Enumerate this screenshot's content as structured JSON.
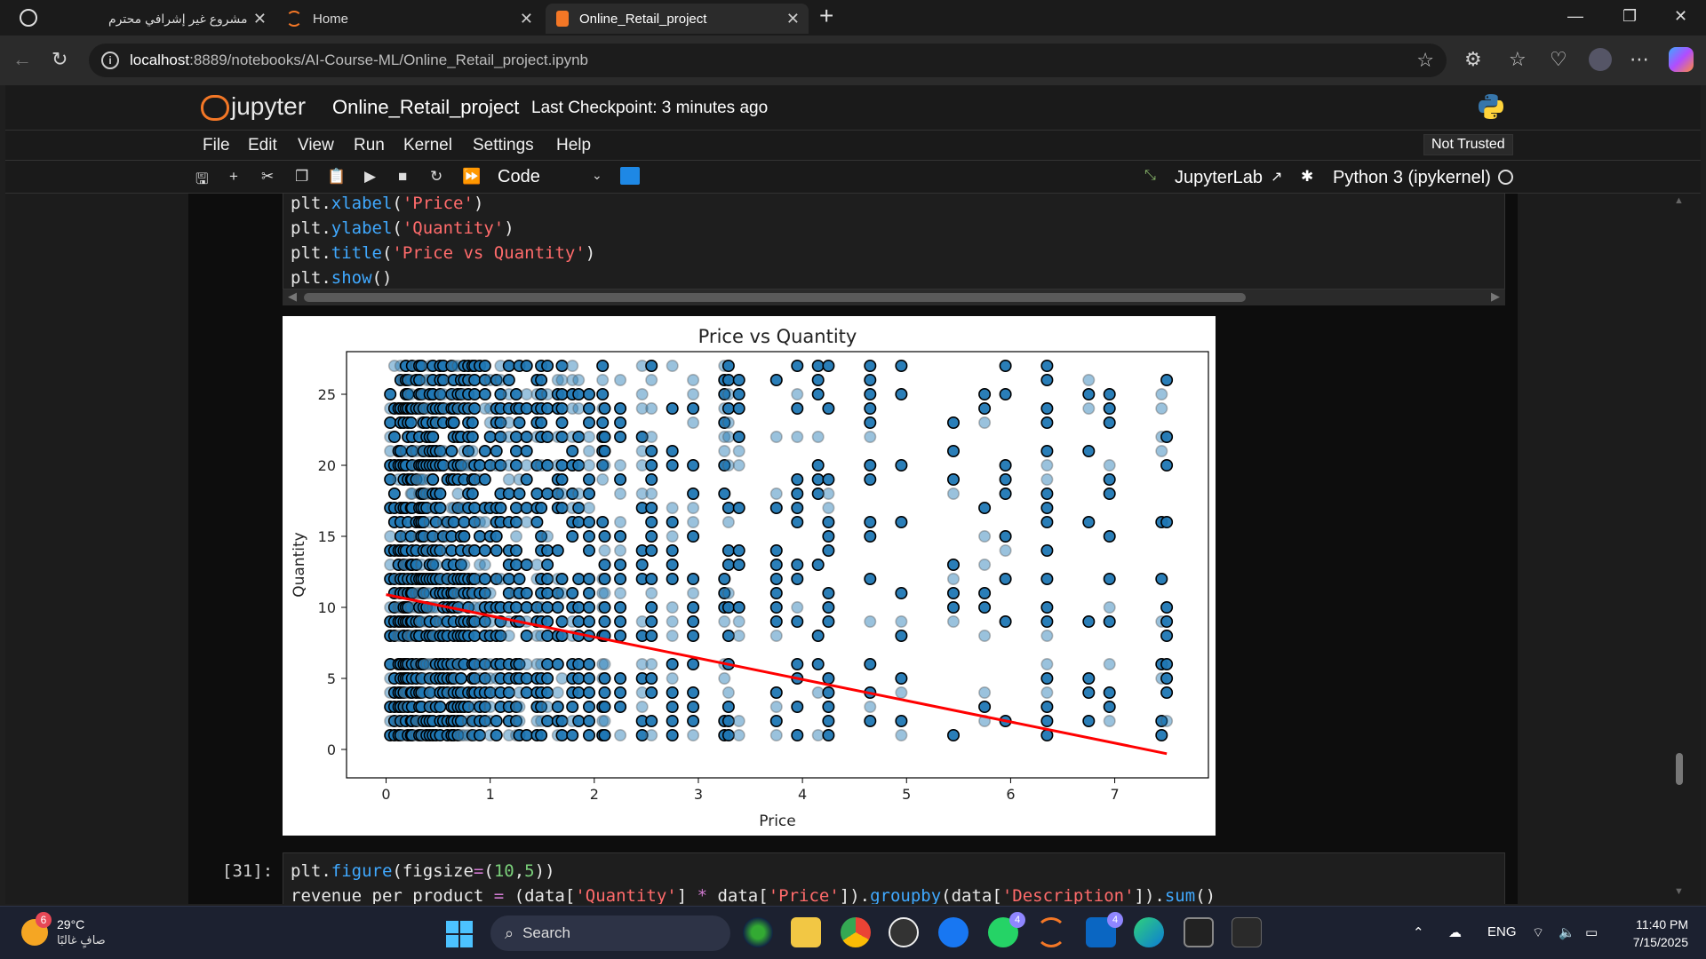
{
  "browser": {
    "tabs": [
      {
        "title": "مشروع غير إشرافي محترم",
        "active": false
      },
      {
        "title": "Home",
        "active": false
      },
      {
        "title": "Online_Retail_project",
        "active": true
      }
    ],
    "new_tab": "+",
    "url_host": "localhost",
    "url_path": ":8889/notebooks/AI-Course-ML/Online_Retail_project.ipynb"
  },
  "jupyter": {
    "logo_text": "jupyter",
    "notebook_name": "Online_Retail_project",
    "checkpoint": "Last Checkpoint: 3 minutes ago",
    "menu": [
      "File",
      "Edit",
      "View",
      "Run",
      "Kernel",
      "Settings",
      "Help"
    ],
    "trust_status": "Not Trusted",
    "cell_type": "Code",
    "jupyterlab_link": "JupyterLab",
    "kernel_name": "Python 3 (ipykernel)"
  },
  "cell1": {
    "lines": [
      {
        "a": "plt.",
        "fn": "xlabel",
        "b": "(",
        "s": "'Price'",
        "c": ")"
      },
      {
        "a": "plt.",
        "fn": "ylabel",
        "b": "(",
        "s": "'Quantity'",
        "c": ")"
      },
      {
        "a": "plt.",
        "fn": "title",
        "b": "(",
        "s": "'Price vs Quantity'",
        "c": ")"
      },
      {
        "a": "plt.",
        "fn": "show",
        "b": "()",
        "s": "",
        "c": ""
      }
    ]
  },
  "cell2": {
    "prompt": "[31]:",
    "line1": {
      "a": "plt.",
      "fn": "figure",
      "b": "(figsize",
      "op": "=",
      "c": "(",
      "n1": "10",
      "d": ",",
      "n2": "5",
      "e": "))"
    },
    "line2": {
      "a": "revenue_per_product ",
      "op1": "=",
      "b": " (data[",
      "s1": "'Quantity'",
      "c": "] ",
      "op2": "*",
      "d": " data[",
      "s2": "'Price'",
      "e": "]).",
      "fn1": "groupby",
      "f": "(data[",
      "s3": "'Description'",
      "g": "]).",
      "fn2": "sum",
      "h": "()"
    }
  },
  "chart_data": {
    "type": "scatter",
    "title": "Price vs Quantity",
    "xlabel": "Price",
    "ylabel": "Quantity",
    "xlim": [
      -0.38,
      7.9
    ],
    "ylim": [
      -2,
      28
    ],
    "xticks": [
      0,
      1,
      2,
      3,
      4,
      5,
      6,
      7
    ],
    "yticks": [
      0,
      5,
      10,
      15,
      20,
      25
    ],
    "x_price_levels": [
      0.04,
      0.08,
      0.12,
      0.14,
      0.17,
      0.19,
      0.21,
      0.24,
      0.25,
      0.29,
      0.32,
      0.34,
      0.36,
      0.39,
      0.42,
      0.45,
      0.48,
      0.52,
      0.55,
      0.59,
      0.63,
      0.65,
      0.69,
      0.72,
      0.75,
      0.79,
      0.83,
      0.85,
      0.9,
      0.95,
      1.0,
      1.06,
      1.1,
      1.18,
      1.25,
      1.28,
      1.35,
      1.45,
      1.49,
      1.55,
      1.65,
      1.69,
      1.79,
      1.85,
      1.95,
      2.08,
      2.1,
      2.25,
      2.46,
      2.55,
      2.75,
      2.95,
      3.25,
      3.29,
      3.39,
      3.75,
      3.95,
      4.15,
      4.25,
      4.65,
      4.95,
      5.45,
      5.75,
      5.95,
      6.35,
      6.75,
      6.95,
      7.45,
      7.5
    ],
    "quantity_levels": [
      1,
      2,
      3,
      4,
      5,
      6,
      8,
      9,
      10,
      11,
      12,
      13,
      14,
      15,
      16,
      17,
      18,
      19,
      20,
      21,
      22,
      23,
      24,
      25,
      26,
      27
    ],
    "regression_line": {
      "x": [
        0,
        7.5
      ],
      "y": [
        10.9,
        -0.3
      ],
      "color": "#ff0000"
    },
    "point_color": "#1f77b4"
  },
  "taskbar": {
    "weather_temp": "29°C",
    "weather_desc": "صافٍ غالبًا",
    "weather_badge": "6",
    "search_label": "Search",
    "lang": "ENG",
    "time": "11:40 PM",
    "date": "7/15/2025",
    "whatsapp_badge": "4",
    "linkedin_badge": "4"
  }
}
